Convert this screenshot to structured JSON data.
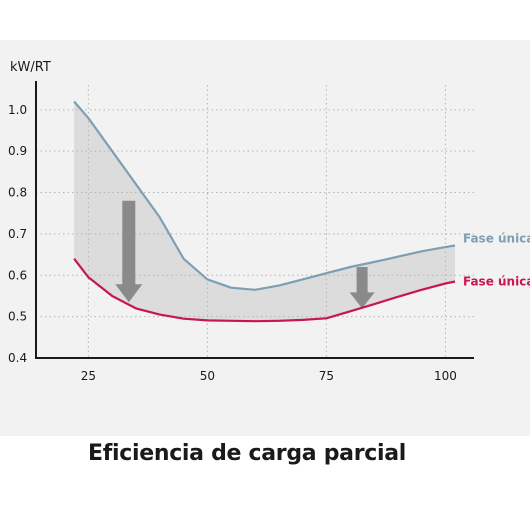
{
  "chart_data": {
    "type": "line",
    "title": "Eficiencia de carga parcial",
    "ylabel": "kW/RT",
    "xlabel": "",
    "x_ticks": [
      "25",
      "50",
      "75",
      "100"
    ],
    "y_ticks": [
      "1.0",
      "0.9",
      "0.8",
      "0.7",
      "0.6",
      "0.5",
      "0.4"
    ],
    "xlim": [
      14,
      106
    ],
    "ylim": [
      0.4,
      1.06
    ],
    "grid": true,
    "series": [
      {
        "name": "Fase única",
        "color": "#7e9fb3",
        "x": [
          22,
          25,
          30,
          35,
          40,
          45,
          50,
          55,
          60,
          65,
          70,
          75,
          80,
          85,
          90,
          95,
          100,
          102
        ],
        "y": [
          1.02,
          0.98,
          0.9,
          0.82,
          0.74,
          0.64,
          0.59,
          0.57,
          0.565,
          0.575,
          0.59,
          0.605,
          0.62,
          0.632,
          0.645,
          0.658,
          0.668,
          0.672
        ]
      },
      {
        "name": "Fase única",
        "color": "#c8174f",
        "x": [
          22,
          25,
          30,
          35,
          40,
          45,
          50,
          55,
          60,
          65,
          70,
          75,
          80,
          85,
          90,
          95,
          100,
          102
        ],
        "y": [
          0.64,
          0.595,
          0.55,
          0.52,
          0.505,
          0.495,
          0.491,
          0.49,
          0.489,
          0.49,
          0.492,
          0.496,
          0.513,
          0.53,
          0.548,
          0.565,
          0.58,
          0.585
        ]
      }
    ],
    "arrows": [
      {
        "x": 33.5,
        "from": 0.78,
        "to": 0.535
      },
      {
        "x": 82.5,
        "from": 0.62,
        "to": 0.52
      }
    ],
    "colors": {
      "fill": "#dcdcdc",
      "arrow": "#8a8a8a",
      "axis": "#1a1a1a",
      "grid": "#b5b5b5"
    }
  }
}
